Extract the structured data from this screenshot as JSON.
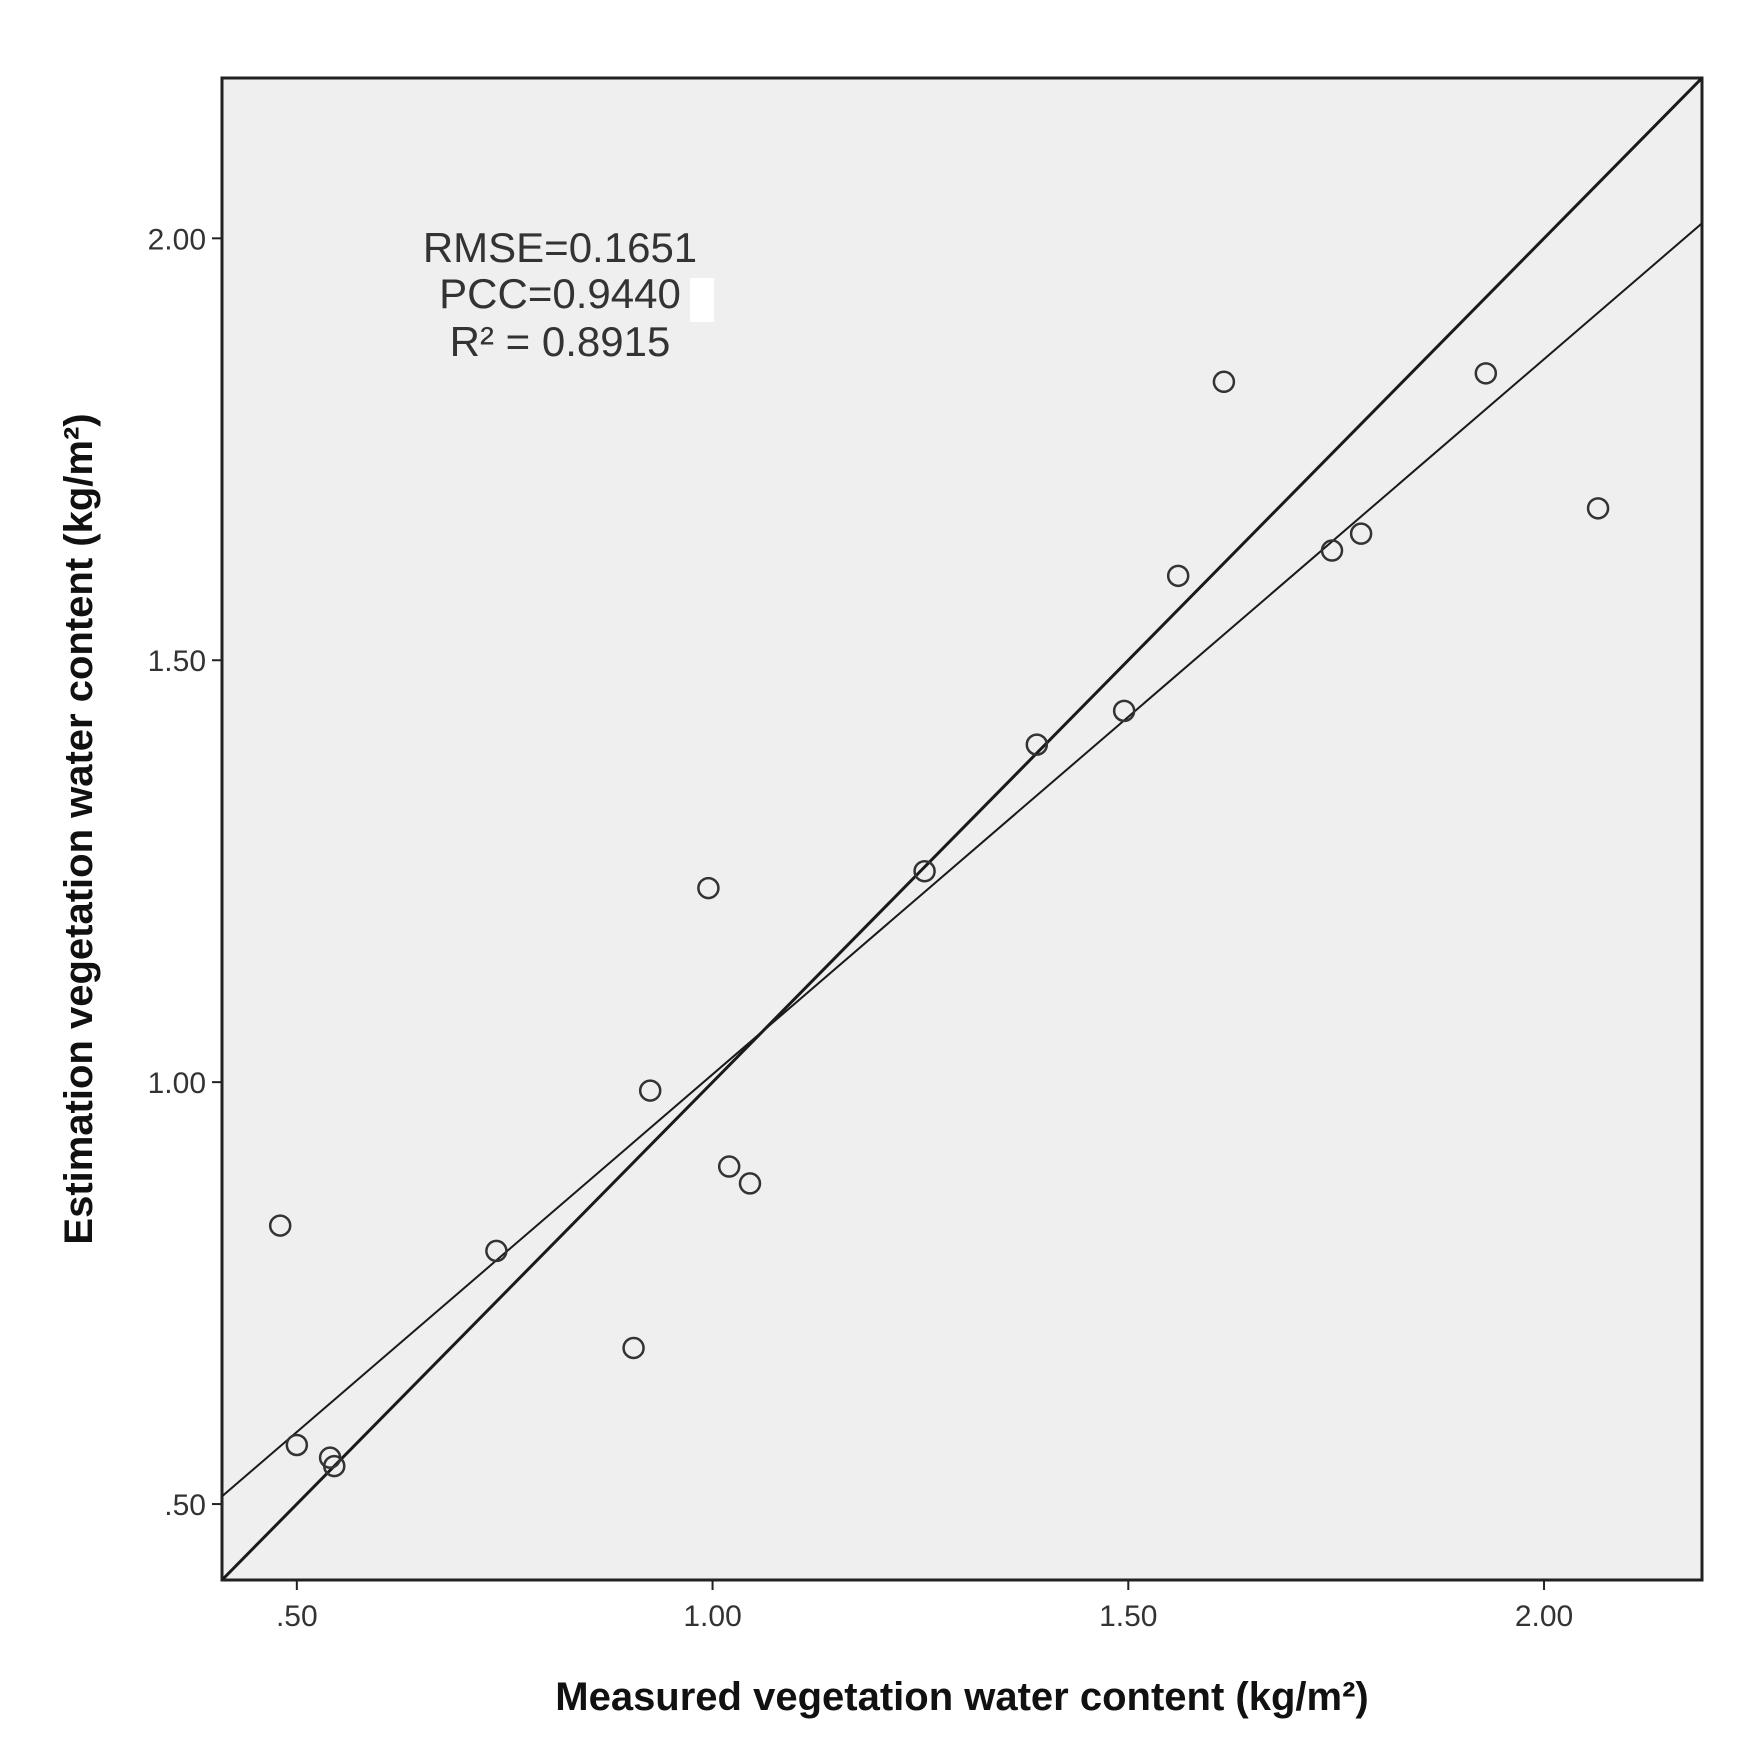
{
  "chart_data": {
    "type": "scatter",
    "title": "",
    "xlabel": "Measured vegetation water content (kg/m²)",
    "ylabel": "Estimation vegetation water content (kg/m²)",
    "xlim": [
      0.41,
      2.19
    ],
    "ylim": [
      0.41,
      2.19
    ],
    "xticks": [
      0.5,
      1.0,
      1.5,
      2.0
    ],
    "yticks": [
      0.5,
      1.0,
      1.5,
      2.0
    ],
    "xtick_labels": [
      ".50",
      "1.00",
      "1.50",
      "2.00"
    ],
    "ytick_labels": [
      ".50",
      "1.00",
      "1.50",
      "2.00"
    ],
    "grid": false,
    "background_color": "#efefef",
    "marker_color": "#333333",
    "line_color": "#1a1a1a",
    "annotations": [
      "RMSE=0.1651",
      "PCC=0.9440",
      "R² = 0.8915"
    ],
    "reference_line": {
      "slope": 1.0,
      "intercept": 0.0
    },
    "fit_line": {
      "slope": 0.8476,
      "intercept": 0.1616
    },
    "points": [
      {
        "x": 0.48,
        "y": 0.83
      },
      {
        "x": 0.5,
        "y": 0.57
      },
      {
        "x": 0.54,
        "y": 0.555
      },
      {
        "x": 0.545,
        "y": 0.545
      },
      {
        "x": 0.74,
        "y": 0.8
      },
      {
        "x": 0.905,
        "y": 0.685
      },
      {
        "x": 0.925,
        "y": 0.99
      },
      {
        "x": 0.995,
        "y": 1.23
      },
      {
        "x": 1.02,
        "y": 0.9
      },
      {
        "x": 1.045,
        "y": 0.88
      },
      {
        "x": 1.255,
        "y": 1.25
      },
      {
        "x": 1.39,
        "y": 1.4
      },
      {
        "x": 1.495,
        "y": 1.44
      },
      {
        "x": 1.56,
        "y": 1.6
      },
      {
        "x": 1.615,
        "y": 1.83
      },
      {
        "x": 1.745,
        "y": 1.63
      },
      {
        "x": 1.78,
        "y": 1.65
      },
      {
        "x": 1.93,
        "y": 1.84
      },
      {
        "x": 2.065,
        "y": 1.68
      }
    ]
  }
}
